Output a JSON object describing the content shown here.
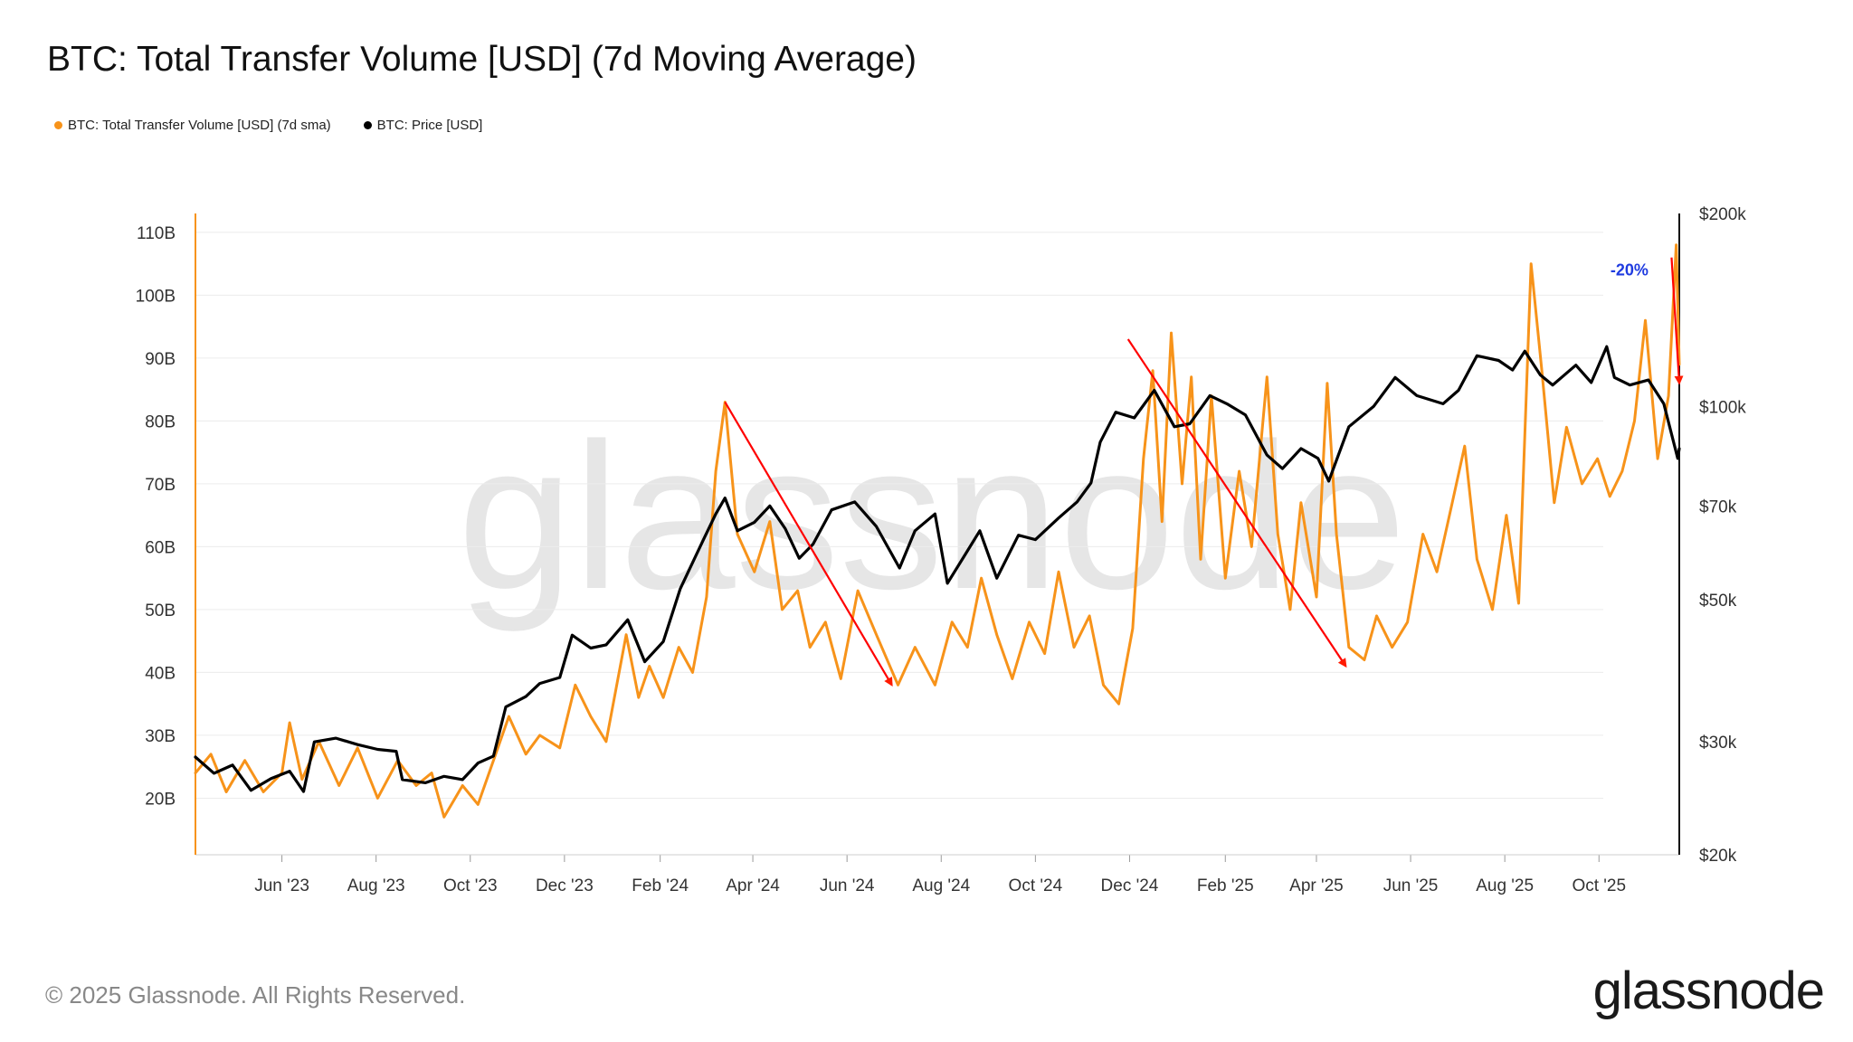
{
  "title": "BTC: Total Transfer Volume [USD] (7d Moving Average)",
  "legend": [
    {
      "label": "BTC: Total Transfer Volume [USD] (7d sma)",
      "color": "#f7931a"
    },
    {
      "label": "BTC: Price [USD]",
      "color": "#000000"
    }
  ],
  "footer": {
    "copyright": "© 2025 Glassnode. All Rights Reserved.",
    "logo": "glassnode",
    "watermark": "glassnode"
  },
  "chart_data": {
    "type": "line",
    "title": "BTC: Total Transfer Volume [USD] (7d Moving Average)",
    "x_ticks": [
      "Jun '23",
      "Aug '23",
      "Oct '23",
      "Dec '23",
      "Feb '24",
      "Apr '24",
      "Jun '24",
      "Aug '24",
      "Oct '24",
      "Dec '24",
      "Feb '25",
      "Apr '25",
      "Jun '25",
      "Aug '25",
      "Oct '25"
    ],
    "x_range": [
      "2023-04-06",
      "2025-11-22"
    ],
    "y_left": {
      "ticks": [
        "20B",
        "30B",
        "40B",
        "50B",
        "60B",
        "70B",
        "80B",
        "90B",
        "100B",
        "110B"
      ],
      "unit": "billion USD",
      "range": [
        11,
        113
      ]
    },
    "y_right": {
      "ticks": [
        "$20k",
        "$30k",
        "$50k",
        "$70k",
        "$100k",
        "$200k"
      ],
      "scale": "log",
      "range": [
        20000,
        200000
      ]
    },
    "grid": true,
    "legend_position": "top-left",
    "series": [
      {
        "name": "BTC: Total Transfer Volume [USD] (7d sma)",
        "axis": "left",
        "color": "#f7931a",
        "points": [
          [
            "2023-04-06",
            24
          ],
          [
            "2023-04-16",
            27
          ],
          [
            "2023-04-26",
            21
          ],
          [
            "2023-05-08",
            26
          ],
          [
            "2023-05-20",
            21
          ],
          [
            "2023-06-01",
            24
          ],
          [
            "2023-06-06",
            32
          ],
          [
            "2023-06-14",
            23
          ],
          [
            "2023-06-25",
            29
          ],
          [
            "2023-07-08",
            22
          ],
          [
            "2023-07-20",
            28
          ],
          [
            "2023-08-02",
            20
          ],
          [
            "2023-08-15",
            26
          ],
          [
            "2023-08-27",
            22
          ],
          [
            "2023-09-06",
            24
          ],
          [
            "2023-09-14",
            17
          ],
          [
            "2023-09-26",
            22
          ],
          [
            "2023-10-06",
            19
          ],
          [
            "2023-10-16",
            26
          ],
          [
            "2023-10-26",
            33
          ],
          [
            "2023-11-06",
            27
          ],
          [
            "2023-11-15",
            30
          ],
          [
            "2023-11-28",
            28
          ],
          [
            "2023-12-08",
            38
          ],
          [
            "2023-12-18",
            33
          ],
          [
            "2023-12-28",
            29
          ],
          [
            "2024-01-10",
            46
          ],
          [
            "2024-01-18",
            36
          ],
          [
            "2024-01-25",
            41
          ],
          [
            "2024-02-03",
            36
          ],
          [
            "2024-02-13",
            44
          ],
          [
            "2024-02-22",
            40
          ],
          [
            "2024-03-02",
            52
          ],
          [
            "2024-03-08",
            72
          ],
          [
            "2024-03-14",
            83
          ],
          [
            "2024-03-22",
            62
          ],
          [
            "2024-04-02",
            56
          ],
          [
            "2024-04-12",
            64
          ],
          [
            "2024-04-20",
            50
          ],
          [
            "2024-04-30",
            53
          ],
          [
            "2024-05-08",
            44
          ],
          [
            "2024-05-18",
            48
          ],
          [
            "2024-05-28",
            39
          ],
          [
            "2024-06-08",
            53
          ],
          [
            "2024-06-20",
            46
          ],
          [
            "2024-07-04",
            38
          ],
          [
            "2024-07-15",
            44
          ],
          [
            "2024-07-28",
            38
          ],
          [
            "2024-08-08",
            48
          ],
          [
            "2024-08-18",
            44
          ],
          [
            "2024-08-27",
            55
          ],
          [
            "2024-09-06",
            46
          ],
          [
            "2024-09-16",
            39
          ],
          [
            "2024-09-27",
            48
          ],
          [
            "2024-10-07",
            43
          ],
          [
            "2024-10-16",
            56
          ],
          [
            "2024-10-26",
            44
          ],
          [
            "2024-11-05",
            49
          ],
          [
            "2024-11-14",
            38
          ],
          [
            "2024-11-24",
            35
          ],
          [
            "2024-12-03",
            47
          ],
          [
            "2024-12-10",
            74
          ],
          [
            "2024-12-16",
            88
          ],
          [
            "2024-12-22",
            64
          ],
          [
            "2024-12-28",
            94
          ],
          [
            "2025-01-04",
            70
          ],
          [
            "2025-01-10",
            87
          ],
          [
            "2025-01-16",
            58
          ],
          [
            "2025-01-23",
            84
          ],
          [
            "2025-02-01",
            55
          ],
          [
            "2025-02-10",
            72
          ],
          [
            "2025-02-18",
            60
          ],
          [
            "2025-02-28",
            87
          ],
          [
            "2025-03-07",
            62
          ],
          [
            "2025-03-15",
            50
          ],
          [
            "2025-03-22",
            67
          ],
          [
            "2025-04-01",
            52
          ],
          [
            "2025-04-08",
            86
          ],
          [
            "2025-04-14",
            62
          ],
          [
            "2025-04-22",
            44
          ],
          [
            "2025-05-02",
            42
          ],
          [
            "2025-05-10",
            49
          ],
          [
            "2025-05-20",
            44
          ],
          [
            "2025-05-30",
            48
          ],
          [
            "2025-06-09",
            62
          ],
          [
            "2025-06-18",
            56
          ],
          [
            "2025-06-28",
            67
          ],
          [
            "2025-07-06",
            76
          ],
          [
            "2025-07-14",
            58
          ],
          [
            "2025-07-24",
            50
          ],
          [
            "2025-08-02",
            65
          ],
          [
            "2025-08-10",
            51
          ],
          [
            "2025-08-18",
            105
          ],
          [
            "2025-08-25",
            88
          ],
          [
            "2025-09-02",
            67
          ],
          [
            "2025-09-10",
            79
          ],
          [
            "2025-09-20",
            70
          ],
          [
            "2025-09-30",
            74
          ],
          [
            "2025-10-08",
            68
          ],
          [
            "2025-10-16",
            72
          ],
          [
            "2025-10-24",
            80
          ],
          [
            "2025-10-31",
            96
          ],
          [
            "2025-11-08",
            74
          ],
          [
            "2025-11-15",
            84
          ],
          [
            "2025-11-20",
            108
          ],
          [
            "2025-11-22",
            89
          ]
        ]
      },
      {
        "name": "BTC: Price [USD]",
        "axis": "right",
        "color": "#000000",
        "points": [
          [
            "2023-04-06",
            28400
          ],
          [
            "2023-04-18",
            26800
          ],
          [
            "2023-04-30",
            27600
          ],
          [
            "2023-05-12",
            25200
          ],
          [
            "2023-05-25",
            26300
          ],
          [
            "2023-06-06",
            27000
          ],
          [
            "2023-06-15",
            25100
          ],
          [
            "2023-06-22",
            30000
          ],
          [
            "2023-07-06",
            30400
          ],
          [
            "2023-07-20",
            29700
          ],
          [
            "2023-08-02",
            29200
          ],
          [
            "2023-08-14",
            29000
          ],
          [
            "2023-08-18",
            26200
          ],
          [
            "2023-09-02",
            25900
          ],
          [
            "2023-09-14",
            26500
          ],
          [
            "2023-09-26",
            26200
          ],
          [
            "2023-10-06",
            27800
          ],
          [
            "2023-10-16",
            28500
          ],
          [
            "2023-10-24",
            34000
          ],
          [
            "2023-11-06",
            35300
          ],
          [
            "2023-11-15",
            37000
          ],
          [
            "2023-11-28",
            37800
          ],
          [
            "2023-12-06",
            44000
          ],
          [
            "2023-12-18",
            42000
          ],
          [
            "2023-12-28",
            42500
          ],
          [
            "2024-01-11",
            46500
          ],
          [
            "2024-01-22",
            40000
          ],
          [
            "2024-02-03",
            43000
          ],
          [
            "2024-02-14",
            52000
          ],
          [
            "2024-02-29",
            62000
          ],
          [
            "2024-03-08",
            68000
          ],
          [
            "2024-03-14",
            72000
          ],
          [
            "2024-03-22",
            64000
          ],
          [
            "2024-04-02",
            66000
          ],
          [
            "2024-04-12",
            70000
          ],
          [
            "2024-04-22",
            64500
          ],
          [
            "2024-05-01",
            58000
          ],
          [
            "2024-05-10",
            61000
          ],
          [
            "2024-05-22",
            69000
          ],
          [
            "2024-06-06",
            71000
          ],
          [
            "2024-06-20",
            65000
          ],
          [
            "2024-07-05",
            56000
          ],
          [
            "2024-07-15",
            64000
          ],
          [
            "2024-07-28",
            68000
          ],
          [
            "2024-08-05",
            53000
          ],
          [
            "2024-08-16",
            58500
          ],
          [
            "2024-08-26",
            64000
          ],
          [
            "2024-09-06",
            54000
          ],
          [
            "2024-09-20",
            63000
          ],
          [
            "2024-10-01",
            62000
          ],
          [
            "2024-10-16",
            67000
          ],
          [
            "2024-10-28",
            71000
          ],
          [
            "2024-11-06",
            76000
          ],
          [
            "2024-11-12",
            88000
          ],
          [
            "2024-11-22",
            98000
          ],
          [
            "2024-12-04",
            96000
          ],
          [
            "2024-12-17",
            106000
          ],
          [
            "2024-12-30",
            93000
          ],
          [
            "2025-01-09",
            94000
          ],
          [
            "2025-01-22",
            104000
          ],
          [
            "2025-02-02",
            101000
          ],
          [
            "2025-02-14",
            97000
          ],
          [
            "2025-02-28",
            84000
          ],
          [
            "2025-03-10",
            80000
          ],
          [
            "2025-03-22",
            86000
          ],
          [
            "2025-04-02",
            83000
          ],
          [
            "2025-04-09",
            76500
          ],
          [
            "2025-04-22",
            93000
          ],
          [
            "2025-05-08",
            100000
          ],
          [
            "2025-05-22",
            111000
          ],
          [
            "2025-06-05",
            104000
          ],
          [
            "2025-06-22",
            101000
          ],
          [
            "2025-07-02",
            106000
          ],
          [
            "2025-07-14",
            120000
          ],
          [
            "2025-07-28",
            118000
          ],
          [
            "2025-08-06",
            114000
          ],
          [
            "2025-08-14",
            122000
          ],
          [
            "2025-08-24",
            112000
          ],
          [
            "2025-09-01",
            108000
          ],
          [
            "2025-09-16",
            116000
          ],
          [
            "2025-09-26",
            109000
          ],
          [
            "2025-10-06",
            124000
          ],
          [
            "2025-10-11",
            111000
          ],
          [
            "2025-10-21",
            108000
          ],
          [
            "2025-11-02",
            110000
          ],
          [
            "2025-11-12",
            101000
          ],
          [
            "2025-11-21",
            83000
          ],
          [
            "2025-11-22",
            86000
          ]
        ]
      }
    ],
    "annotations": [
      {
        "type": "arrow",
        "color": "#ff0000",
        "from": [
          "2024-03-14",
          83
        ],
        "to": [
          "2024-06-30",
          38
        ],
        "axis": "left"
      },
      {
        "type": "arrow",
        "color": "#ff0000",
        "from": [
          "2024-11-30",
          93
        ],
        "to": [
          "2025-04-20",
          41
        ],
        "axis": "left"
      },
      {
        "type": "arrow",
        "color": "#ff0000",
        "from": [
          "2025-11-17",
          106
        ],
        "to": [
          "2025-11-22",
          86
        ],
        "axis": "left"
      },
      {
        "type": "text",
        "text": "-20%",
        "color": "#1f3be0",
        "at": [
          "2025-11-02",
          104
        ],
        "axis": "left"
      }
    ]
  }
}
